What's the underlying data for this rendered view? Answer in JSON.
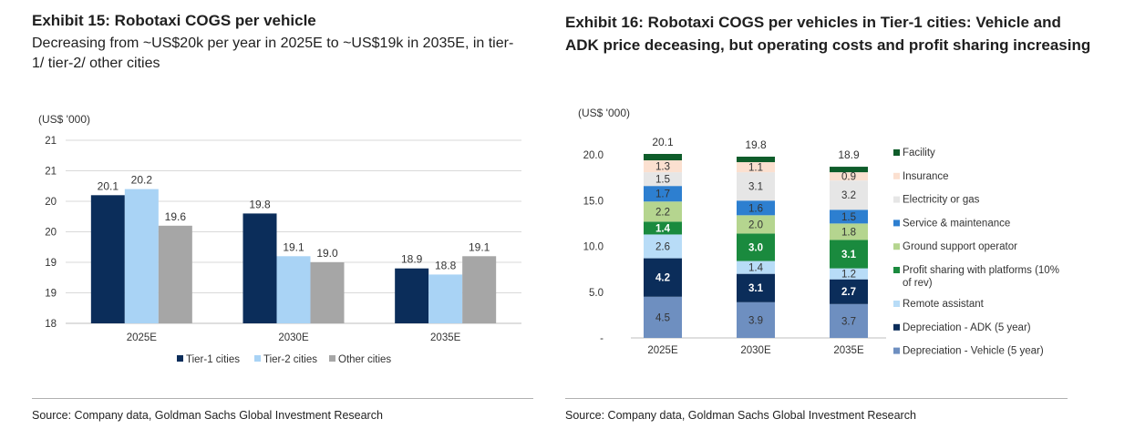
{
  "left": {
    "title": "Exhibit 15: Robotaxi COGS per vehicle",
    "subtitle": "Decreasing from ~US$20k per year in 2025E to ~US$19k in 2035E, in tier-1/ tier-2/ other cities",
    "source": "Source: Company data, Goldman Sachs Global Investment Research"
  },
  "right": {
    "title": "Exhibit 16: Robotaxi COGS per vehicles in Tier-1 cities: Vehicle and ADK price deceasing, but operating costs and profit sharing increasing",
    "source": "Source: Company data, Goldman Sachs Global Investment Research"
  },
  "chart_data": [
    {
      "type": "bar",
      "ylabel": "(US$ '000)",
      "ylim": [
        18,
        21
      ],
      "yticks": [
        18,
        18.5,
        19,
        19.5,
        20,
        20.5,
        21
      ],
      "ytick_labels": [
        "18",
        "19",
        "19",
        "20",
        "20",
        "21",
        "21"
      ],
      "categories": [
        "2025E",
        "2030E",
        "2035E"
      ],
      "series": [
        {
          "name": "Tier-1 cities",
          "color": "#0b2d5a",
          "values": [
            20.1,
            19.8,
            18.9
          ],
          "labels": [
            "20.1",
            "19.8",
            "18.9"
          ]
        },
        {
          "name": "Tier-2 cities",
          "color": "#a9d3f5",
          "values": [
            20.2,
            19.1,
            18.8
          ],
          "labels": [
            "20.2",
            "19.1",
            "18.8"
          ]
        },
        {
          "name": "Other cities",
          "color": "#a6a6a6",
          "values": [
            19.6,
            19.0,
            19.1
          ],
          "labels": [
            "19.6",
            "19.0",
            "19.1"
          ]
        }
      ],
      "legend": "bottom"
    },
    {
      "type": "bar",
      "stacked": true,
      "ylabel": "(US$ '000)",
      "ylim": [
        0,
        20
      ],
      "yticks": [
        0,
        5,
        10,
        15,
        20
      ],
      "ytick_labels": [
        "-",
        "5.0",
        "10.0",
        "15.0",
        "20.0"
      ],
      "categories": [
        "2025E",
        "2030E",
        "2035E"
      ],
      "totals": [
        "20.1",
        "19.8",
        "18.9"
      ],
      "series": [
        {
          "name": "Depreciation - Vehicle (5 year)",
          "color": "#6e8fc0",
          "values": [
            4.5,
            3.9,
            3.7
          ],
          "labels": [
            "4.5",
            "3.9",
            "3.7"
          ]
        },
        {
          "name": "Depreciation - ADK (5 year)",
          "color": "#0b2d5a",
          "values": [
            4.2,
            3.1,
            2.7
          ],
          "labels": [
            "4.2",
            "3.1",
            "2.7"
          ]
        },
        {
          "name": "Remote assistant",
          "color": "#b8dcf7",
          "values": [
            2.6,
            1.4,
            1.2
          ],
          "labels": [
            "2.6",
            "1.4",
            "1.2"
          ]
        },
        {
          "name": "Profit sharing with platforms (10% of rev)",
          "color": "#1a8a3e",
          "values": [
            1.4,
            3.0,
            3.1
          ],
          "labels": [
            "1.4",
            "3.0",
            "3.1"
          ]
        },
        {
          "name": "Ground support operator",
          "color": "#b5d58f",
          "values": [
            2.2,
            2.0,
            1.8
          ],
          "labels": [
            "2.2",
            "2.0",
            "1.8"
          ]
        },
        {
          "name": "Service & maintenance",
          "color": "#2d7fd0",
          "values": [
            1.7,
            1.6,
            1.5
          ],
          "labels": [
            "1.7",
            "1.6",
            "1.5"
          ]
        },
        {
          "name": "Electricity or gas",
          "color": "#e6e6e6",
          "values": [
            1.5,
            3.1,
            3.2
          ],
          "labels": [
            "1.5",
            "3.1",
            "3.2"
          ]
        },
        {
          "name": "Insurance",
          "color": "#fbe0d0",
          "values": [
            1.3,
            1.1,
            0.9
          ],
          "labels": [
            "1.3",
            "1.1",
            "0.9"
          ]
        },
        {
          "name": "Facility",
          "color": "#0e5c2a",
          "values": [
            0.7,
            0.6,
            0.6
          ],
          "labels": [
            "",
            "",
            ""
          ]
        }
      ],
      "legend": "right"
    }
  ]
}
